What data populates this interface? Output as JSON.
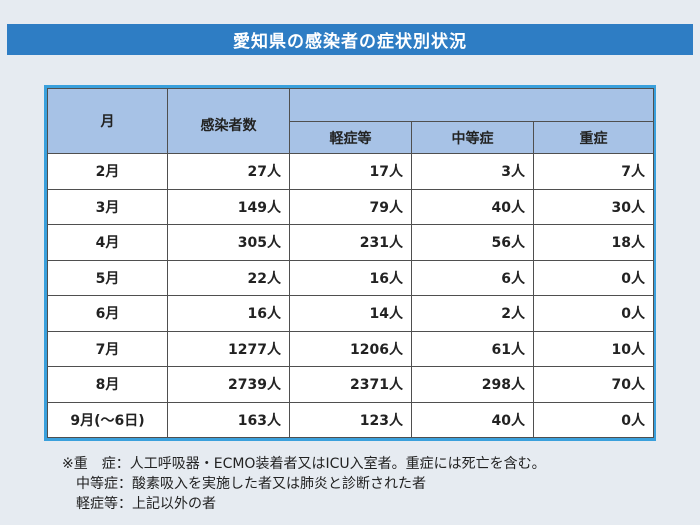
{
  "title": "愛知県の感染者の症状別状況",
  "table": {
    "headers": {
      "month": "月",
      "total": "感染者数",
      "mild": "軽症等",
      "moderate": "中等症",
      "severe": "重症"
    },
    "rows": [
      {
        "month": "2月",
        "total": "27人",
        "mild": "17人",
        "moderate": "3人",
        "severe": "7人"
      },
      {
        "month": "3月",
        "total": "149人",
        "mild": "79人",
        "moderate": "40人",
        "severe": "30人"
      },
      {
        "month": "4月",
        "total": "305人",
        "mild": "231人",
        "moderate": "56人",
        "severe": "18人"
      },
      {
        "month": "5月",
        "total": "22人",
        "mild": "16人",
        "moderate": "6人",
        "severe": "0人"
      },
      {
        "month": "6月",
        "total": "16人",
        "mild": "14人",
        "moderate": "2人",
        "severe": "0人"
      },
      {
        "month": "7月",
        "total": "1277人",
        "mild": "1206人",
        "moderate": "61人",
        "severe": "10人"
      },
      {
        "month": "8月",
        "total": "2739人",
        "mild": "2371人",
        "moderate": "298人",
        "severe": "70人"
      },
      {
        "month": "9月(～6日)",
        "total": "163人",
        "mild": "123人",
        "moderate": "40人",
        "severe": "0人"
      }
    ]
  },
  "notes": [
    "※重　症：人工呼吸器・ECMO装着者又はICU入室者。重症には死亡を含む。",
    "　中等症：酸素吸入を実施した者又は肺炎と診断された者",
    "　軽症等：上記以外の者"
  ],
  "colors": {
    "title_bg": "#2e7dc4",
    "header_bg": "#a7c2e6",
    "table_border": "#3aa0dc",
    "page_bg": "#e6ebf1"
  }
}
